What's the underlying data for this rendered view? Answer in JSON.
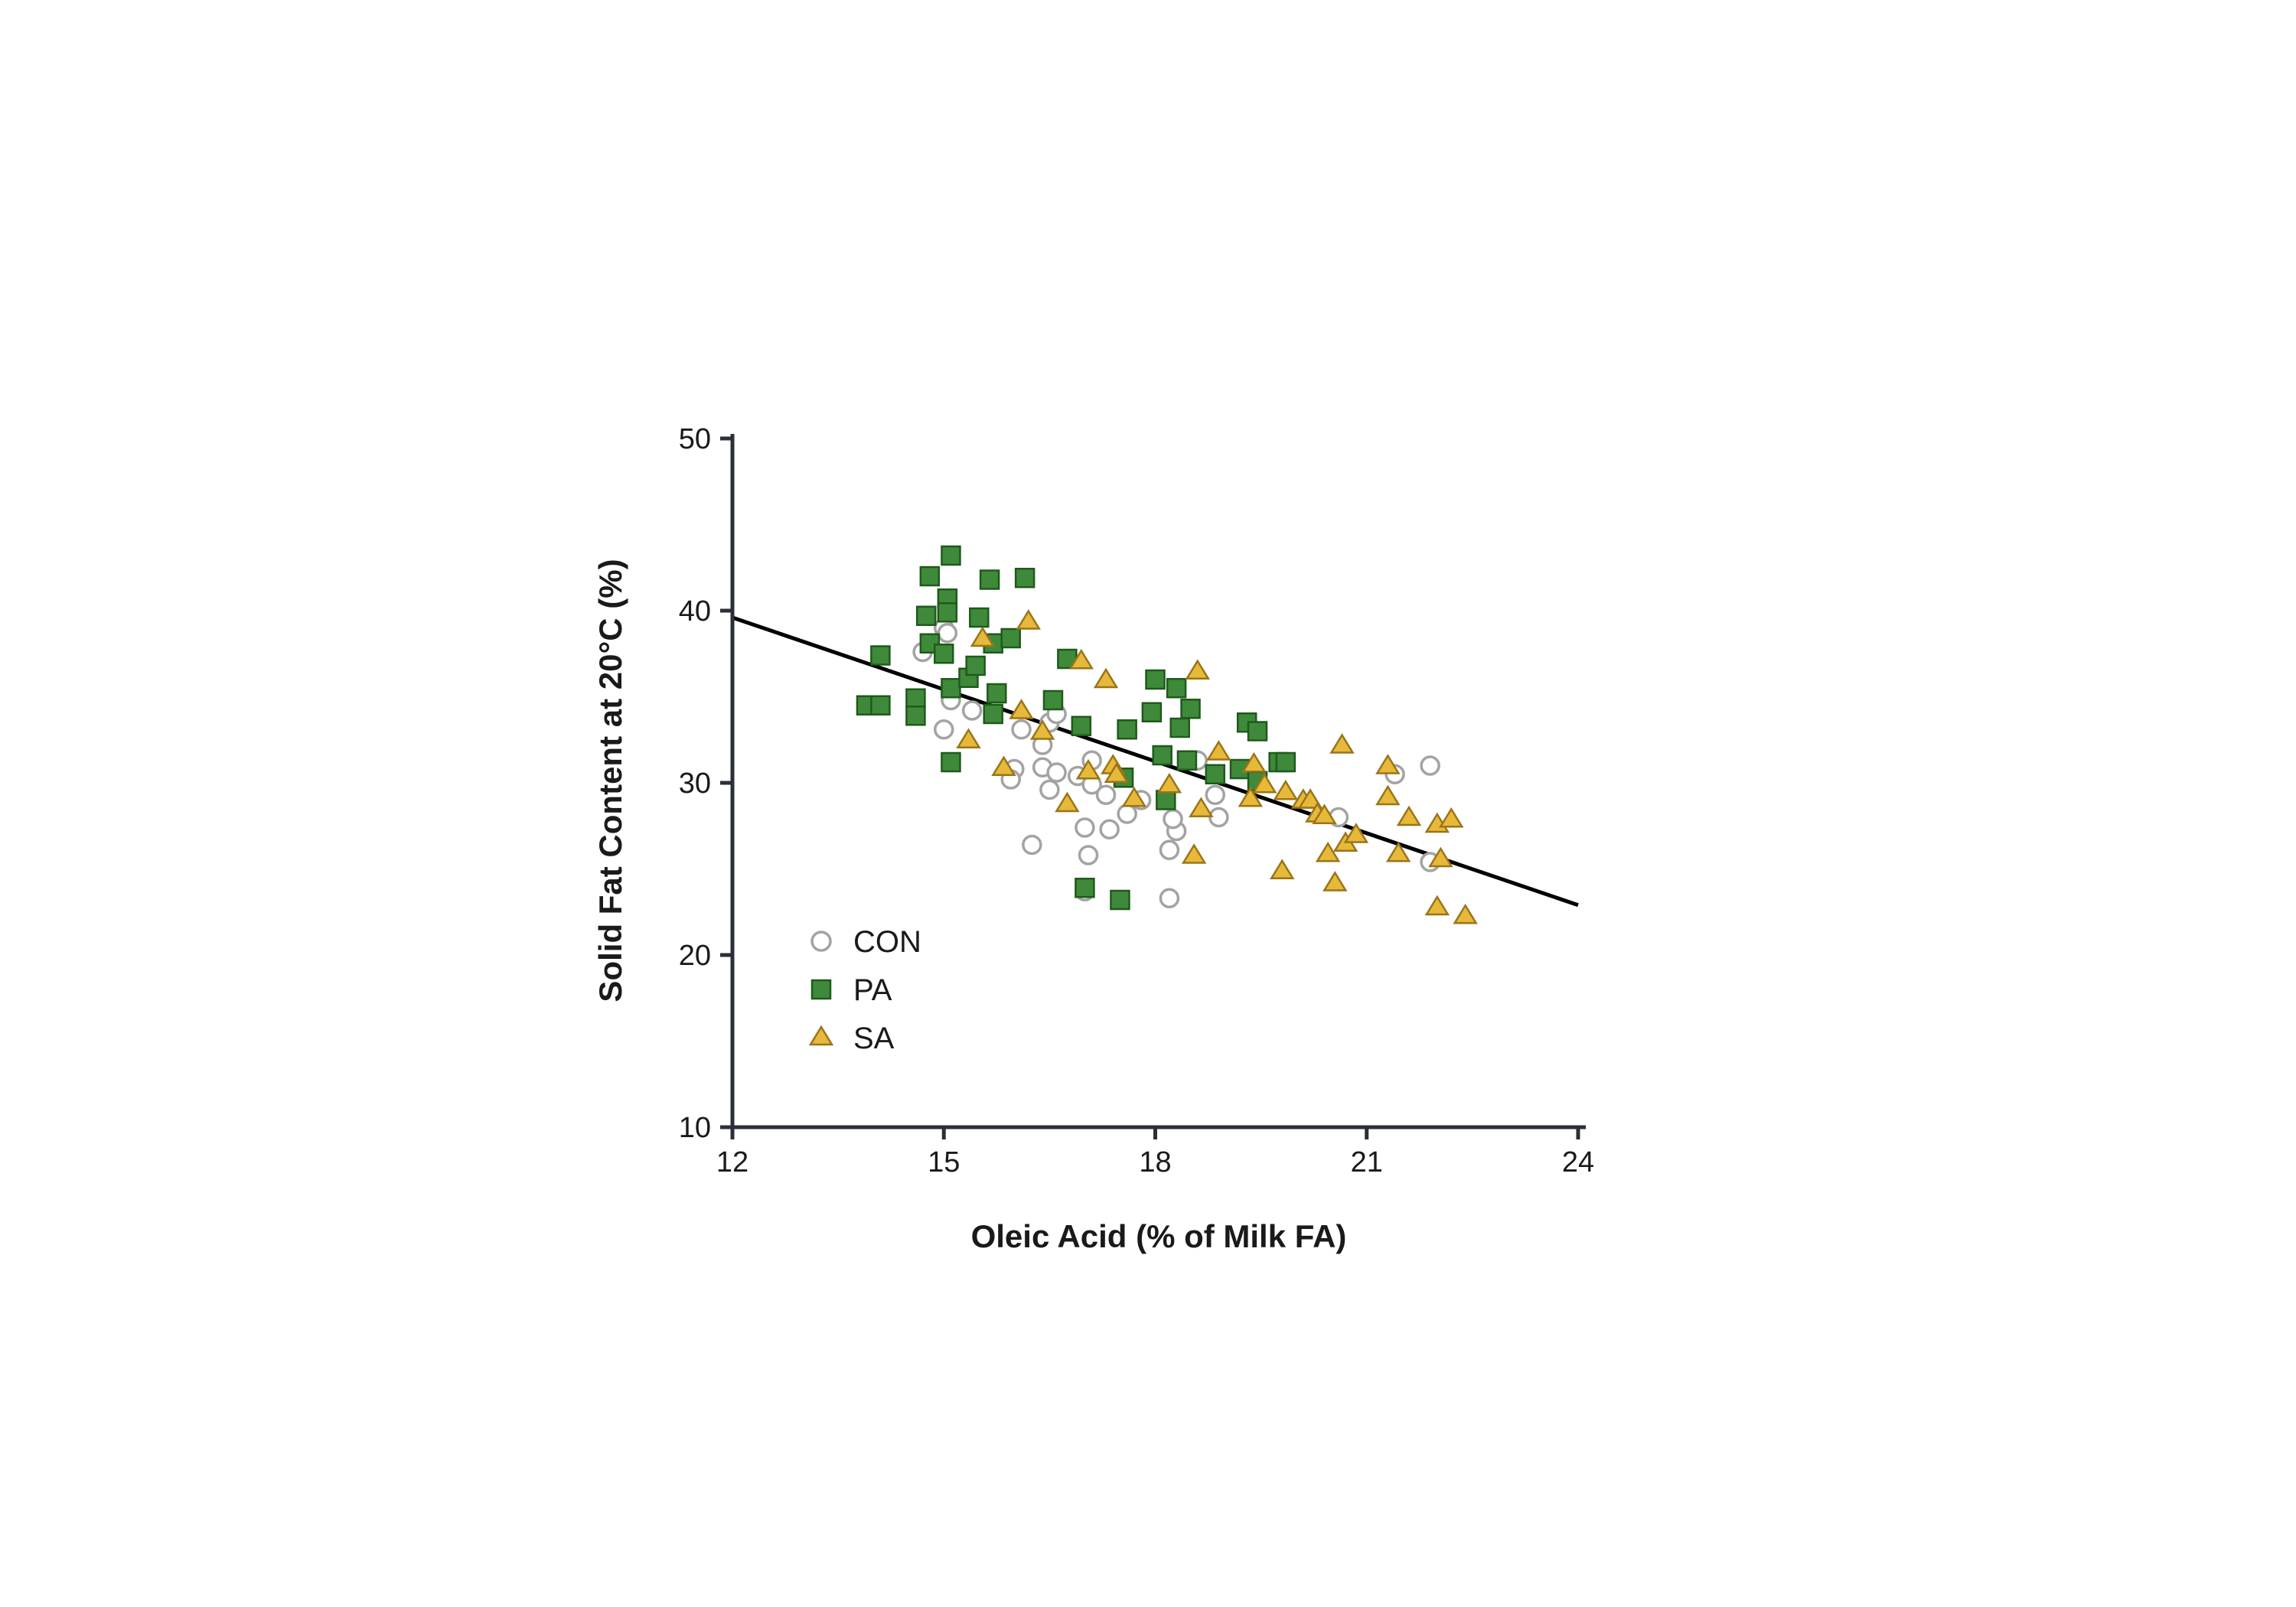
{
  "chart_data": {
    "type": "scatter",
    "title": "",
    "xlabel": "Oleic Acid (% of Milk FA)",
    "ylabel": "Solid Fat Content at 20°C (%)",
    "xlim": [
      12,
      24
    ],
    "ylim": [
      10,
      50
    ],
    "xticks": [
      12,
      15,
      18,
      21,
      24
    ],
    "yticks": [
      10,
      20,
      30,
      40,
      50
    ],
    "legend_position": "bottom-left",
    "regression": {
      "x": [
        12,
        24
      ],
      "y": [
        39.6,
        22.9
      ]
    },
    "series": [
      {
        "name": "CON",
        "marker": "circle",
        "color": "#a3a3a3",
        "points": [
          [
            14.7,
            37.6
          ],
          [
            15.0,
            39.0
          ],
          [
            15.05,
            38.7
          ],
          [
            15.0,
            33.1
          ],
          [
            15.1,
            34.8
          ],
          [
            15.4,
            34.2
          ],
          [
            16.1,
            33.1
          ],
          [
            16.5,
            33.5
          ],
          [
            16.6,
            34.0
          ],
          [
            16.4,
            32.2
          ],
          [
            16.0,
            30.8
          ],
          [
            15.95,
            30.2
          ],
          [
            16.4,
            30.9
          ],
          [
            16.5,
            29.6
          ],
          [
            16.6,
            30.6
          ],
          [
            16.9,
            30.4
          ],
          [
            17.1,
            31.3
          ],
          [
            17.1,
            29.9
          ],
          [
            17.3,
            29.3
          ],
          [
            17.0,
            27.4
          ],
          [
            17.05,
            25.8
          ],
          [
            17.35,
            27.3
          ],
          [
            17.6,
            28.2
          ],
          [
            17.8,
            29.0
          ],
          [
            16.25,
            26.4
          ],
          [
            17.0,
            23.7
          ],
          [
            18.2,
            26.1
          ],
          [
            18.3,
            27.2
          ],
          [
            18.25,
            27.9
          ],
          [
            18.6,
            31.3
          ],
          [
            18.85,
            29.3
          ],
          [
            18.9,
            28.0
          ],
          [
            18.2,
            23.3
          ],
          [
            20.6,
            28.0
          ],
          [
            21.4,
            30.5
          ],
          [
            21.9,
            31.0
          ],
          [
            21.9,
            25.4
          ]
        ]
      },
      {
        "name": "PA",
        "marker": "square",
        "color": "#3f8a3a",
        "points": [
          [
            13.9,
            34.5
          ],
          [
            14.1,
            34.5
          ],
          [
            14.1,
            37.4
          ],
          [
            14.6,
            34.9
          ],
          [
            14.6,
            33.9
          ],
          [
            14.75,
            39.7
          ],
          [
            14.8,
            42.0
          ],
          [
            14.8,
            38.1
          ],
          [
            15.0,
            37.5
          ],
          [
            15.05,
            40.7
          ],
          [
            15.05,
            39.9
          ],
          [
            15.1,
            43.2
          ],
          [
            15.1,
            35.5
          ],
          [
            15.1,
            31.2
          ],
          [
            15.35,
            36.1
          ],
          [
            15.45,
            36.8
          ],
          [
            15.5,
            39.6
          ],
          [
            15.65,
            41.8
          ],
          [
            15.7,
            38.1
          ],
          [
            15.75,
            35.2
          ],
          [
            15.7,
            34.0
          ],
          [
            15.95,
            38.4
          ],
          [
            16.15,
            41.9
          ],
          [
            16.55,
            34.8
          ],
          [
            16.75,
            37.2
          ],
          [
            16.95,
            33.3
          ],
          [
            17.0,
            23.9
          ],
          [
            17.5,
            23.2
          ],
          [
            17.55,
            30.3
          ],
          [
            17.6,
            33.1
          ],
          [
            17.95,
            34.1
          ],
          [
            18.0,
            36.0
          ],
          [
            18.1,
            31.6
          ],
          [
            18.15,
            29.0
          ],
          [
            18.3,
            35.5
          ],
          [
            18.35,
            33.2
          ],
          [
            18.45,
            31.3
          ],
          [
            18.5,
            34.3
          ],
          [
            18.85,
            30.5
          ],
          [
            19.2,
            30.8
          ],
          [
            19.3,
            33.5
          ],
          [
            19.45,
            33.0
          ],
          [
            19.45,
            30.1
          ],
          [
            19.75,
            31.2
          ],
          [
            19.85,
            31.2
          ]
        ]
      },
      {
        "name": "SA",
        "marker": "triangle",
        "color": "#e7b93a",
        "points": [
          [
            15.55,
            38.4
          ],
          [
            15.35,
            32.5
          ],
          [
            15.85,
            30.9
          ],
          [
            16.1,
            34.2
          ],
          [
            16.2,
            39.4
          ],
          [
            16.4,
            33.0
          ],
          [
            16.75,
            28.8
          ],
          [
            16.95,
            37.1
          ],
          [
            17.05,
            30.7
          ],
          [
            17.3,
            36.0
          ],
          [
            17.4,
            31.0
          ],
          [
            17.45,
            30.5
          ],
          [
            17.7,
            29.1
          ],
          [
            18.2,
            29.9
          ],
          [
            18.55,
            25.8
          ],
          [
            18.6,
            36.5
          ],
          [
            18.65,
            28.5
          ],
          [
            18.9,
            31.8
          ],
          [
            19.35,
            29.1
          ],
          [
            19.4,
            31.1
          ],
          [
            19.55,
            29.9
          ],
          [
            19.85,
            29.5
          ],
          [
            19.8,
            24.9
          ],
          [
            20.1,
            29.0
          ],
          [
            20.2,
            29.0
          ],
          [
            20.3,
            28.2
          ],
          [
            20.4,
            28.1
          ],
          [
            20.45,
            25.9
          ],
          [
            20.55,
            24.2
          ],
          [
            20.65,
            32.2
          ],
          [
            20.7,
            26.5
          ],
          [
            20.85,
            27.0
          ],
          [
            21.3,
            31.0
          ],
          [
            21.3,
            29.2
          ],
          [
            21.45,
            25.9
          ],
          [
            21.6,
            28.0
          ],
          [
            22.0,
            27.6
          ],
          [
            22.0,
            22.8
          ],
          [
            22.05,
            25.6
          ],
          [
            22.2,
            27.9
          ],
          [
            22.4,
            22.3
          ]
        ]
      }
    ]
  }
}
